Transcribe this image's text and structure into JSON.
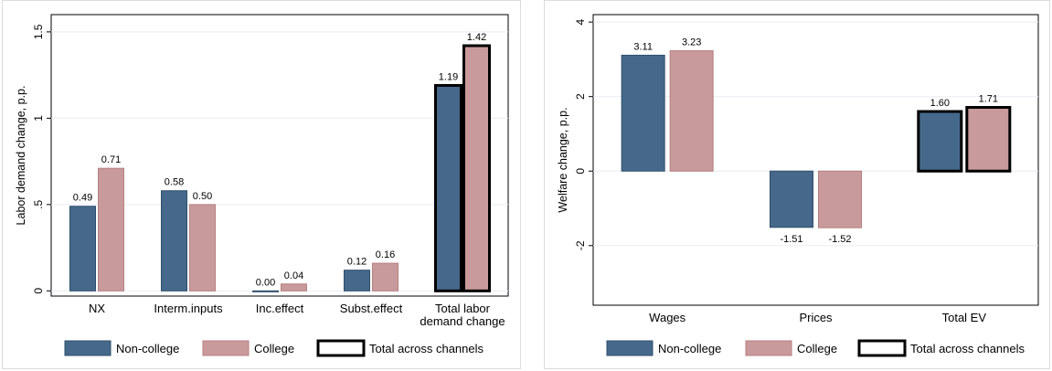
{
  "colors": {
    "noncollege": "#46698b",
    "college": "#c99a9b",
    "total_border": "#000000",
    "grid": "#e6eef4"
  },
  "legend": {
    "noncollege": "Non-college",
    "college": "College",
    "total": "Total across channels"
  },
  "chart_data": [
    {
      "type": "bar",
      "ylabel": "Labor demand change, p.p.",
      "ylim": [
        -0.03,
        1.6
      ],
      "yticks": [
        0,
        0.5,
        1,
        1.5
      ],
      "ytick_labels": [
        "0",
        ".5",
        "1",
        "1.5"
      ],
      "grid": true,
      "legend_position": "bottom",
      "categories": [
        [
          "NX"
        ],
        [
          "Interm.inputs"
        ],
        [
          "Inc.effect"
        ],
        [
          "Subst.effect"
        ],
        [
          "Total labor",
          "demand change"
        ]
      ],
      "series": [
        {
          "name": "Non-college",
          "values": [
            0.49,
            0.58,
            0.0,
            0.12,
            1.19
          ],
          "labels": [
            "0.49",
            "0.58",
            "0.00",
            "0.12",
            "1.19"
          ]
        },
        {
          "name": "College",
          "values": [
            0.71,
            0.5,
            0.04,
            0.16,
            1.42
          ],
          "labels": [
            "0.71",
            "0.50",
            "0.04",
            "0.16",
            "1.42"
          ]
        }
      ],
      "total_category_index": 4
    },
    {
      "type": "bar",
      "ylabel": "Welfare change, p.p.",
      "ylim": [
        -3.6,
        4.2
      ],
      "yticks": [
        -2,
        0,
        2,
        4
      ],
      "ytick_labels": [
        "-2",
        "0",
        "2",
        "4"
      ],
      "grid": true,
      "legend_position": "bottom",
      "categories": [
        [
          "Wages"
        ],
        [
          "Prices"
        ],
        [
          "Total EV"
        ]
      ],
      "series": [
        {
          "name": "Non-college",
          "values": [
            3.11,
            -1.51,
            1.6
          ],
          "labels": [
            "3.11",
            "-1.51",
            "1.60"
          ]
        },
        {
          "name": "College",
          "values": [
            3.23,
            -1.52,
            1.71
          ],
          "labels": [
            "3.23",
            "-1.52",
            "1.71"
          ]
        }
      ],
      "total_category_index": 2
    }
  ]
}
